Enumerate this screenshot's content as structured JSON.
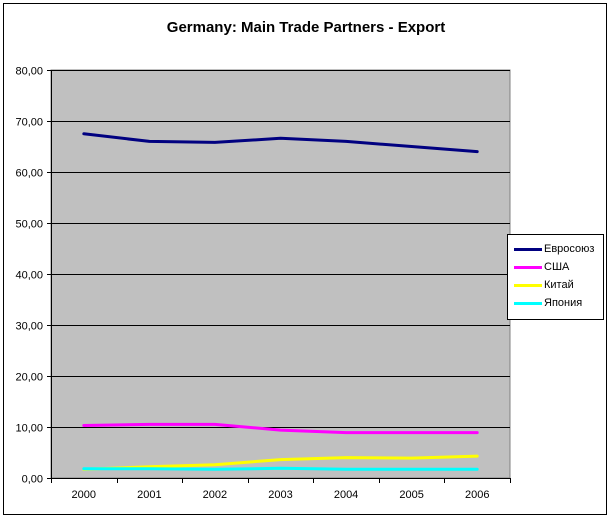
{
  "chart_data": {
    "type": "line",
    "title": "Germany: Main Trade Partners - Export",
    "xlabel": "",
    "ylabel": "",
    "categories": [
      "2000",
      "2001",
      "2002",
      "2003",
      "2004",
      "2005",
      "2006"
    ],
    "ylim": [
      0,
      80
    ],
    "y_ticks": [
      "0,00",
      "10,00",
      "20,00",
      "30,00",
      "40,00",
      "50,00",
      "60,00",
      "70,00",
      "80,00"
    ],
    "grid": true,
    "plot_background": "#c0c0c0",
    "legend_position": "right",
    "series": [
      {
        "name": "Евросоюз",
        "color": "#000080",
        "values": [
          67.5,
          66.0,
          65.8,
          66.6,
          66.0,
          65.0,
          64.0
        ]
      },
      {
        "name": "США",
        "color": "#ff00ff",
        "values": [
          10.3,
          10.5,
          10.5,
          9.4,
          8.9,
          8.9,
          8.9
        ]
      },
      {
        "name": "Китай",
        "color": "#ffff00",
        "values": [
          1.7,
          2.2,
          2.6,
          3.6,
          4.0,
          3.9,
          4.3
        ]
      },
      {
        "name": "Япония",
        "color": "#00ffff",
        "values": [
          1.8,
          1.8,
          1.7,
          1.9,
          1.7,
          1.7,
          1.7
        ]
      }
    ]
  }
}
